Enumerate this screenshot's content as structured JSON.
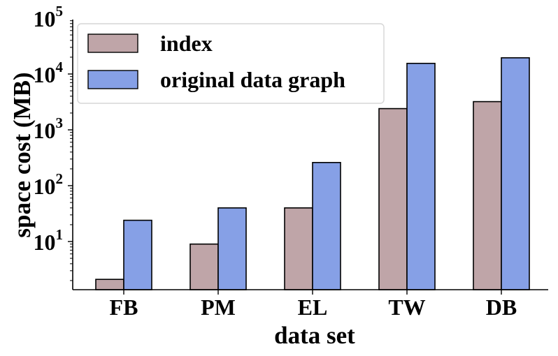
{
  "chart_data": {
    "type": "bar",
    "ylabel": "space cost (MB)",
    "xlabel": "data set",
    "yscale": "log",
    "ylim": [
      1.3,
      100000
    ],
    "yticks": [
      {
        "value": 10,
        "base": "10",
        "exp": "1"
      },
      {
        "value": 100,
        "base": "10",
        "exp": "2"
      },
      {
        "value": 1000,
        "base": "10",
        "exp": "3"
      },
      {
        "value": 10000,
        "base": "10",
        "exp": "4"
      },
      {
        "value": 100000,
        "base": "10",
        "exp": "5"
      }
    ],
    "categories": [
      "FB",
      "PM",
      "EL",
      "TW",
      "DB"
    ],
    "series": [
      {
        "name": "index",
        "color": "#bfa5a8",
        "values": [
          2.1,
          9,
          40,
          2400,
          3200
        ]
      },
      {
        "name": "original data graph",
        "color": "#86a0e6",
        "values": [
          24,
          40,
          260,
          15500,
          19500
        ]
      }
    ],
    "legend_position": "top-left",
    "grid": false
  }
}
